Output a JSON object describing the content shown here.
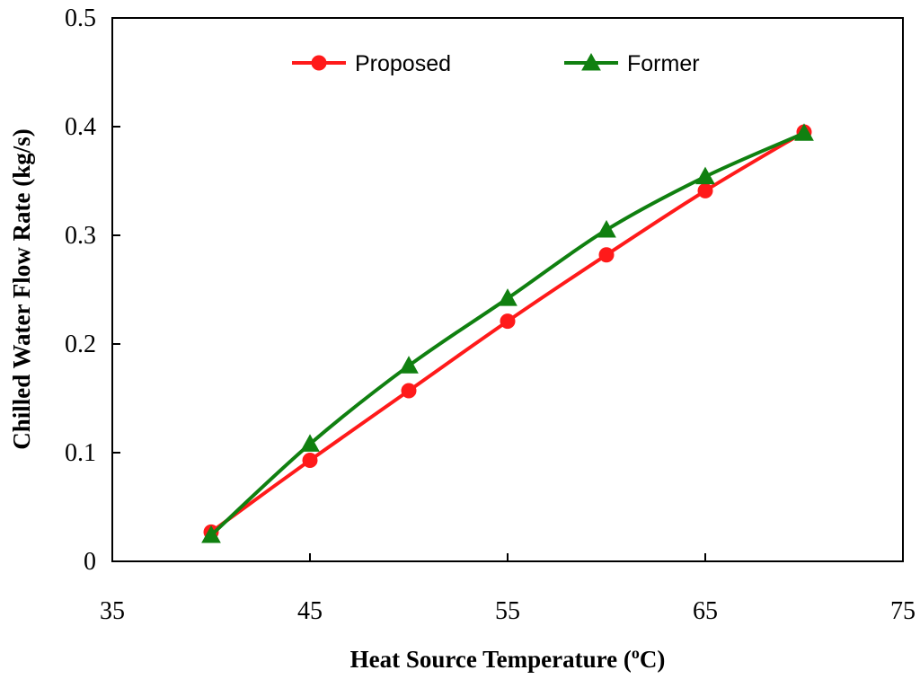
{
  "chart_data": {
    "type": "line",
    "title": "",
    "xlabel": "Heat Source Temperature (",
    "xlabel_sup": "o",
    "xlabel_suffix": "C)",
    "ylabel": "Chilled Water Flow Rate (kg/s)",
    "xlim": [
      35,
      75
    ],
    "ylim": [
      0,
      0.5
    ],
    "xticks": [
      35,
      45,
      55,
      65,
      75
    ],
    "yticks": [
      0,
      0.1,
      0.2,
      0.3,
      0.4,
      0.5
    ],
    "xtick_labels": [
      "35",
      "45",
      "55",
      "65",
      "75"
    ],
    "ytick_labels": [
      "0",
      "0.1",
      "0.2",
      "0.3",
      "0.4",
      "0.5"
    ],
    "grid": false,
    "legend_position": "top",
    "x": [
      40,
      45,
      50,
      55,
      60,
      65,
      70
    ],
    "series": [
      {
        "name": "Proposed",
        "color": "#ff1a1a",
        "marker": "circle",
        "values": [
          0.027,
          0.093,
          0.157,
          0.221,
          0.282,
          0.341,
          0.395
        ]
      },
      {
        "name": "Former",
        "color": "#108010",
        "marker": "triangle",
        "values": [
          0.024,
          0.108,
          0.18,
          0.242,
          0.305,
          0.354,
          0.394
        ]
      }
    ]
  }
}
